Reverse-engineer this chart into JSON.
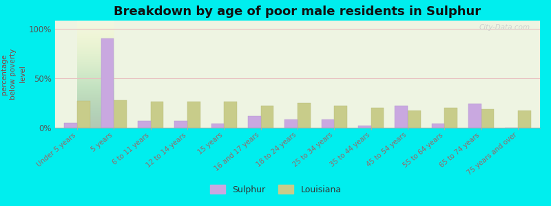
{
  "title": "Breakdown by age of poor male residents in Sulphur",
  "ylabel": "percentage\nbelow poverty\nlevel",
  "categories": [
    "Under 5 years",
    "5 years",
    "6 to 11 years",
    "12 to 14 years",
    "15 years",
    "16 and 17 years",
    "18 to 24 years",
    "25 to 34 years",
    "35 to 44 years",
    "45 to 54 years",
    "55 to 64 years",
    "65 to 74 years",
    "75 years and over"
  ],
  "sulphur_values": [
    5,
    90,
    7,
    7,
    4,
    12,
    8,
    8,
    2,
    22,
    4,
    24,
    0
  ],
  "louisiana_values": [
    27,
    28,
    26,
    26,
    26,
    22,
    25,
    22,
    20,
    17,
    20,
    19,
    17
  ],
  "sulphur_color": "#c9a8e0",
  "louisiana_color": "#c8cc8a",
  "background_top": "#f0f5e0",
  "background_bottom": "#e0f0e0",
  "outer_background": "#00eeee",
  "bar_width": 0.35,
  "ylim": [
    0,
    108
  ],
  "yticks": [
    0,
    50,
    100
  ],
  "ytick_labels": [
    "0%",
    "50%",
    "100%"
  ],
  "title_fontsize": 13,
  "legend_labels": [
    "Sulphur",
    "Louisiana"
  ],
  "watermark": "City-Data.com"
}
